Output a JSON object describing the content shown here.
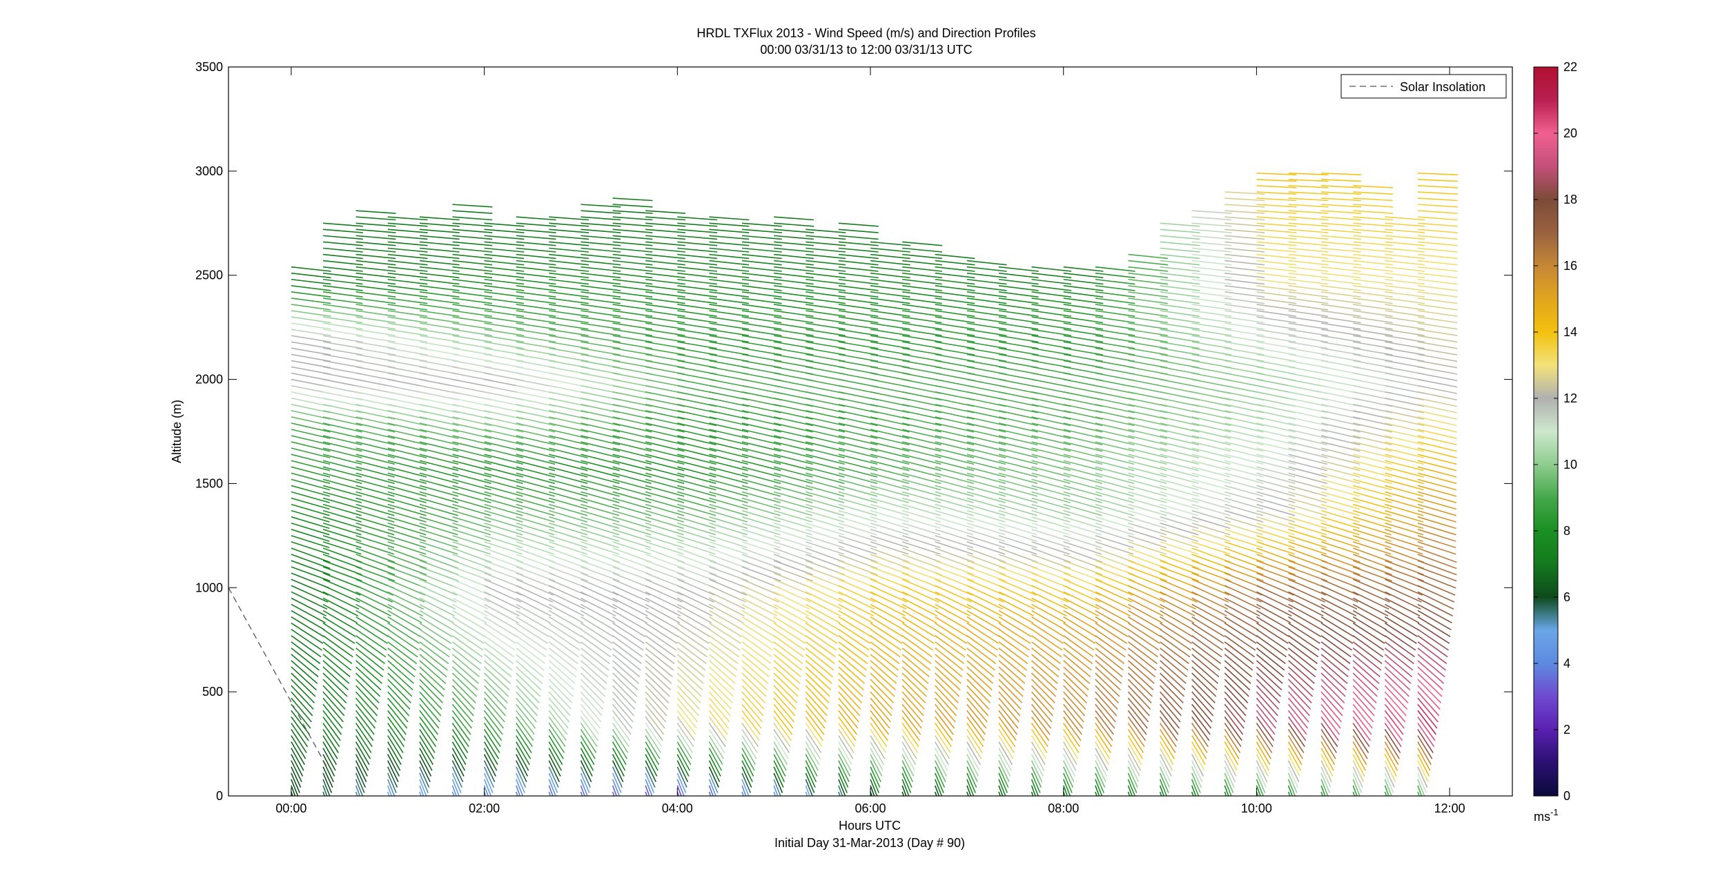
{
  "chart_data": {
    "type": "wind-barb-time-height",
    "title": "HRDL TXFlux 2013 - Wind Speed (m/s) and Direction Profiles",
    "subtitle": "00:00 03/31/13 to 12:00 03/31/13  UTC",
    "xlabel": "Hours UTC",
    "xlabel2": "Initial Day 31-Mar-2013 (Day # 90)",
    "ylabel": "Altitude (m)",
    "x_range_hours": [
      -0.65,
      12.65
    ],
    "ylim": [
      0,
      3500
    ],
    "x_ticks": [
      {
        "hour": 0,
        "label": "00:00"
      },
      {
        "hour": 2,
        "label": "02:00"
      },
      {
        "hour": 4,
        "label": "04:00"
      },
      {
        "hour": 6,
        "label": "06:00"
      },
      {
        "hour": 8,
        "label": "08:00"
      },
      {
        "hour": 10,
        "label": "10:00"
      },
      {
        "hour": 12,
        "label": "12:00"
      }
    ],
    "y_ticks": [
      0,
      500,
      1000,
      1500,
      2000,
      2500,
      3000,
      3500
    ],
    "legend": {
      "label": "Solar Insolation",
      "placement": "top-right",
      "line_style": "dashed",
      "line_color": "#555555"
    },
    "solar_insolation_line": {
      "x_hours": [
        -0.65,
        0.38
      ],
      "y": [
        1000,
        130
      ]
    },
    "colorbar": {
      "range": [
        0,
        22
      ],
      "ticks": [
        0,
        2,
        4,
        6,
        8,
        10,
        12,
        14,
        16,
        18,
        20,
        22
      ],
      "unit": "ms",
      "unit_exponent": "-1",
      "colors": [
        "#0a0a3c",
        "#2a1070",
        "#5a20b0",
        "#6f4ad0",
        "#5d8ae0",
        "#6aa6e6",
        "#0e4a1c",
        "#147a1e",
        "#1a8f22",
        "#45a84a",
        "#8fcc90",
        "#cde8cc",
        "#b0b0b0",
        "#f3e27a",
        "#f2c10e",
        "#e2a51e",
        "#c58736",
        "#9a6240",
        "#7c4a38",
        "#c4507a",
        "#f06090",
        "#b82050",
        "#b01030"
      ]
    },
    "profile_hours": [
      0.0,
      0.33,
      0.67,
      1.0,
      1.33,
      1.67,
      2.0,
      2.33,
      2.67,
      3.0,
      3.33,
      3.67,
      4.0,
      4.33,
      4.67,
      5.0,
      5.33,
      5.67,
      6.0,
      6.33,
      6.67,
      7.0,
      7.33,
      7.67,
      8.0,
      8.33,
      8.67,
      9.0,
      9.33,
      9.67,
      10.0,
      10.33,
      10.67,
      11.0,
      11.33,
      11.67
    ],
    "profile_tops_m": [
      2550,
      2770,
      2810,
      2800,
      2790,
      2860,
      2750,
      2800,
      2790,
      2850,
      2880,
      2820,
      2800,
      2780,
      2750,
      2800,
      2720,
      2750,
      2680,
      2680,
      2620,
      2580,
      2560,
      2550,
      2540,
      2560,
      2610,
      2750,
      2820,
      2900,
      3000,
      3000,
      3000,
      2950,
      2800,
      3000
    ],
    "wind_speed_profiles_ms": [
      {
        "hour": 0.0,
        "altitudes_m": [
          50,
          400,
          1000,
          1800,
          2000,
          2200,
          2500
        ],
        "speeds": [
          6,
          7,
          7,
          9,
          12,
          12,
          7
        ]
      },
      {
        "hour": 2.0,
        "altitudes_m": [
          50,
          400,
          1000,
          1600,
          2000,
          2300,
          2700
        ],
        "speeds": [
          4,
          9,
          12,
          8,
          12,
          9,
          7
        ]
      },
      {
        "hour": 4.0,
        "altitudes_m": [
          50,
          400,
          1000,
          1600,
          2000,
          2400,
          2800
        ],
        "speeds": [
          3,
          13,
          12,
          8,
          9,
          8,
          7
        ]
      },
      {
        "hour": 6.0,
        "altitudes_m": [
          50,
          400,
          1000,
          1600,
          2000,
          2400,
          2700
        ],
        "speeds": [
          6,
          15,
          14,
          9,
          9,
          8,
          7
        ]
      },
      {
        "hour": 8.0,
        "altitudes_m": [
          50,
          400,
          900,
          1400,
          2000,
          2400,
          2550
        ],
        "speeds": [
          7,
          16,
          15,
          10,
          9,
          8,
          7
        ]
      },
      {
        "hour": 10.0,
        "altitudes_m": [
          50,
          400,
          1000,
          1400,
          2000,
          2500,
          3000
        ],
        "speeds": [
          8,
          19,
          17,
          12,
          10,
          13,
          14
        ]
      },
      {
        "hour": 11.67,
        "altitudes_m": [
          50,
          400,
          1000,
          1500,
          2000,
          2500,
          3000
        ],
        "speeds": [
          9,
          21,
          17,
          15,
          12,
          13,
          14
        ]
      }
    ]
  }
}
